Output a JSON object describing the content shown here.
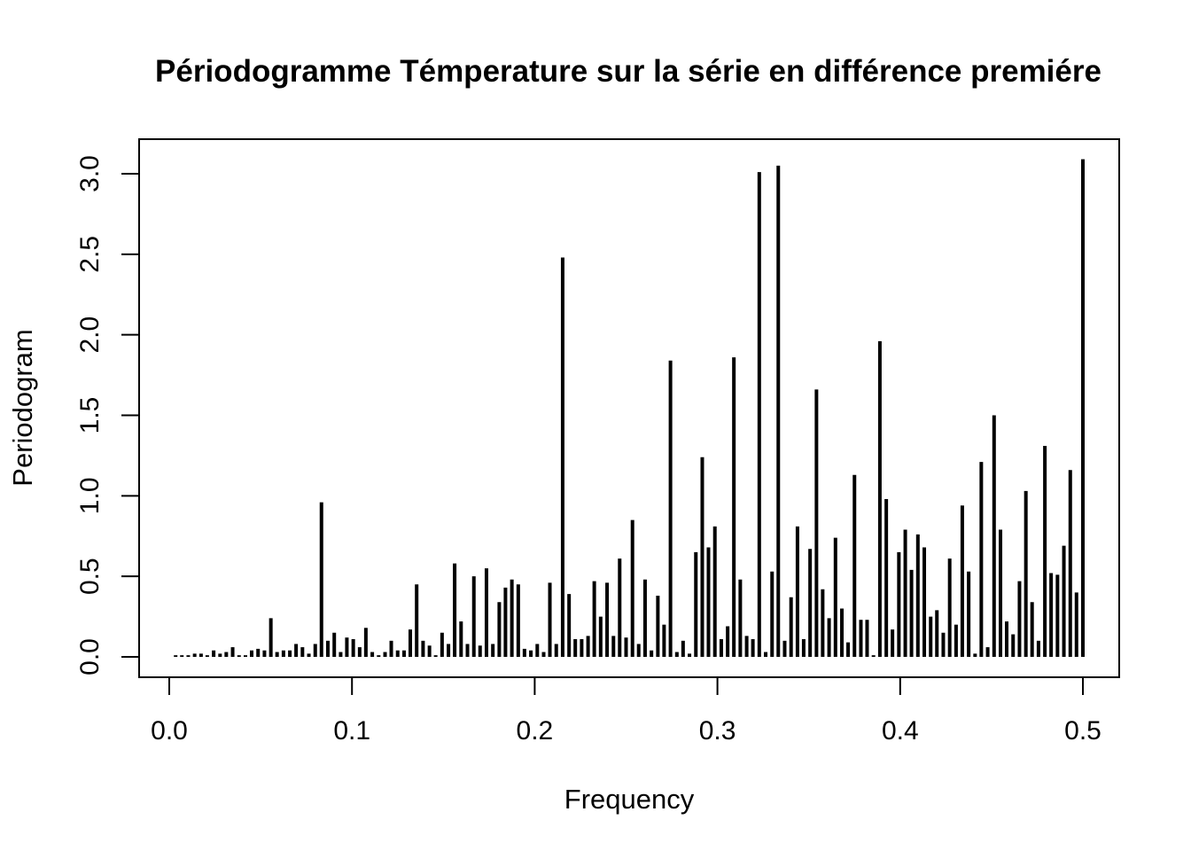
{
  "chart_data": {
    "type": "bar",
    "style": "vertical-lines (type=h)",
    "title": "Périodogramme Témperature sur la série en différence premiére",
    "xlabel": "Frequency",
    "ylabel": "Periodogram",
    "xlim": [
      -0.008,
      0.5
    ],
    "ylim": [
      0.0,
      3.2
    ],
    "xticks": [
      0.0,
      0.1,
      0.2,
      0.3,
      0.4,
      0.5
    ],
    "xtick_labels": [
      "0.0",
      "0.1",
      "0.2",
      "0.3",
      "0.4",
      "0.5"
    ],
    "yticks": [
      0.0,
      0.5,
      1.0,
      1.5,
      2.0,
      2.5,
      3.0
    ],
    "ytick_labels": [
      "0.0",
      "0.5",
      "1.0",
      "1.5",
      "2.0",
      "2.5",
      "3.0"
    ],
    "grid": false,
    "color": "#000000",
    "x": [
      0.0035,
      0.0069,
      0.0104,
      0.0139,
      0.0174,
      0.0208,
      0.0243,
      0.0278,
      0.0312,
      0.0347,
      0.0382,
      0.0417,
      0.0451,
      0.0486,
      0.0521,
      0.0556,
      0.059,
      0.0625,
      0.066,
      0.0694,
      0.0729,
      0.0764,
      0.0799,
      0.0833,
      0.0868,
      0.0903,
      0.0938,
      0.0972,
      0.1007,
      0.1042,
      0.1076,
      0.1111,
      0.1146,
      0.1181,
      0.1215,
      0.125,
      0.1285,
      0.1319,
      0.1354,
      0.1389,
      0.1424,
      0.1458,
      0.1493,
      0.1528,
      0.1562,
      0.1597,
      0.1632,
      0.1667,
      0.1701,
      0.1736,
      0.1771,
      0.1806,
      0.184,
      0.1875,
      0.191,
      0.1944,
      0.1979,
      0.2014,
      0.2049,
      0.2083,
      0.2118,
      0.2153,
      0.2188,
      0.2222,
      0.2257,
      0.2292,
      0.2326,
      0.2361,
      0.2396,
      0.2431,
      0.2465,
      0.25,
      0.2535,
      0.2569,
      0.2604,
      0.2639,
      0.2674,
      0.2708,
      0.2743,
      0.2778,
      0.2812,
      0.2847,
      0.2882,
      0.2917,
      0.2951,
      0.2986,
      0.3021,
      0.3056,
      0.309,
      0.3125,
      0.316,
      0.3194,
      0.3229,
      0.3264,
      0.3299,
      0.3333,
      0.3368,
      0.3403,
      0.3438,
      0.3472,
      0.3507,
      0.3542,
      0.3576,
      0.3611,
      0.3646,
      0.3681,
      0.3715,
      0.375,
      0.3785,
      0.3819,
      0.3854,
      0.3889,
      0.3924,
      0.3958,
      0.3993,
      0.4028,
      0.4062,
      0.4097,
      0.4132,
      0.4167,
      0.4201,
      0.4236,
      0.4271,
      0.4306,
      0.434,
      0.4375,
      0.441,
      0.4444,
      0.4479,
      0.4514,
      0.4549,
      0.4583,
      0.4618,
      0.4653,
      0.4688,
      0.4722,
      0.4757,
      0.4792,
      0.4826,
      0.4861,
      0.4896,
      0.4931,
      0.4965,
      0.5
    ],
    "y": [
      0.01,
      0.01,
      0.01,
      0.02,
      0.02,
      0.01,
      0.04,
      0.02,
      0.03,
      0.06,
      0.01,
      0.01,
      0.04,
      0.05,
      0.04,
      0.24,
      0.03,
      0.04,
      0.04,
      0.08,
      0.06,
      0.02,
      0.08,
      0.96,
      0.1,
      0.15,
      0.03,
      0.12,
      0.11,
      0.06,
      0.18,
      0.03,
      0.01,
      0.03,
      0.1,
      0.04,
      0.04,
      0.17,
      0.45,
      0.1,
      0.07,
      0.01,
      0.15,
      0.08,
      0.58,
      0.22,
      0.08,
      0.5,
      0.07,
      0.55,
      0.08,
      0.34,
      0.43,
      0.48,
      0.45,
      0.05,
      0.04,
      0.08,
      0.03,
      0.46,
      0.08,
      2.48,
      0.39,
      0.11,
      0.11,
      0.13,
      0.47,
      0.25,
      0.46,
      0.13,
      0.61,
      0.12,
      0.85,
      0.08,
      0.48,
      0.04,
      0.38,
      0.2,
      1.84,
      0.03,
      0.1,
      0.02,
      0.65,
      1.24,
      0.68,
      0.81,
      0.11,
      0.19,
      1.86,
      0.48,
      0.13,
      0.11,
      3.01,
      0.03,
      0.53,
      3.05,
      0.1,
      0.37,
      0.81,
      0.11,
      0.67,
      1.66,
      0.42,
      0.24,
      0.74,
      0.3,
      0.09,
      1.13,
      0.23,
      0.23,
      0.01,
      1.96,
      0.98,
      0.17,
      0.65,
      0.79,
      0.54,
      0.76,
      0.68,
      0.25,
      0.29,
      0.15,
      0.61,
      0.2,
      0.94,
      0.53,
      0.02,
      1.21,
      0.06,
      1.5,
      0.79,
      0.22,
      0.14,
      0.47,
      1.03,
      0.34,
      0.1,
      1.31,
      0.52,
      0.51,
      0.69,
      1.16,
      0.4,
      3.09
    ]
  }
}
